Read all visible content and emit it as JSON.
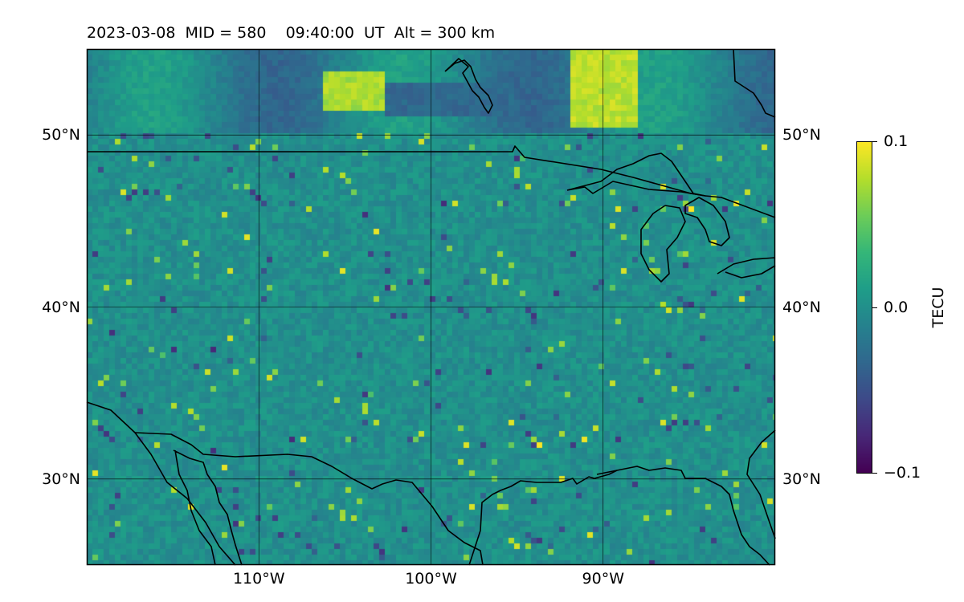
{
  "title": {
    "date": "2023-03-08",
    "mid": "MID = 580",
    "time": "09:40:00  UT",
    "alt": "Alt = 300 km"
  },
  "map": {
    "lon_range": [
      -120,
      -80
    ],
    "lat_range": [
      25,
      55
    ],
    "lon_ticks": [
      {
        "value": -110,
        "label": "110°W"
      },
      {
        "value": -100,
        "label": "100°W"
      },
      {
        "value": -90,
        "label": "90°W"
      }
    ],
    "lat_ticks": [
      {
        "value": 50,
        "label": "50°N"
      },
      {
        "value": 40,
        "label": "40°N"
      },
      {
        "value": 30,
        "label": "30°N"
      }
    ],
    "gridlines": true,
    "colormap": "viridis"
  },
  "colorbar": {
    "label": "TECU",
    "min": -0.1,
    "max": 0.1,
    "ticks": [
      {
        "value": 0.1,
        "label": "0.1"
      },
      {
        "value": 0.0,
        "label": "0.0"
      },
      {
        "value": -0.1,
        "label": "−0.1"
      }
    ]
  },
  "colors": {
    "viridis_low": "#440154",
    "viridis_mid": "#21908c",
    "viridis_high": "#fde725",
    "coastline": "#000000"
  }
}
